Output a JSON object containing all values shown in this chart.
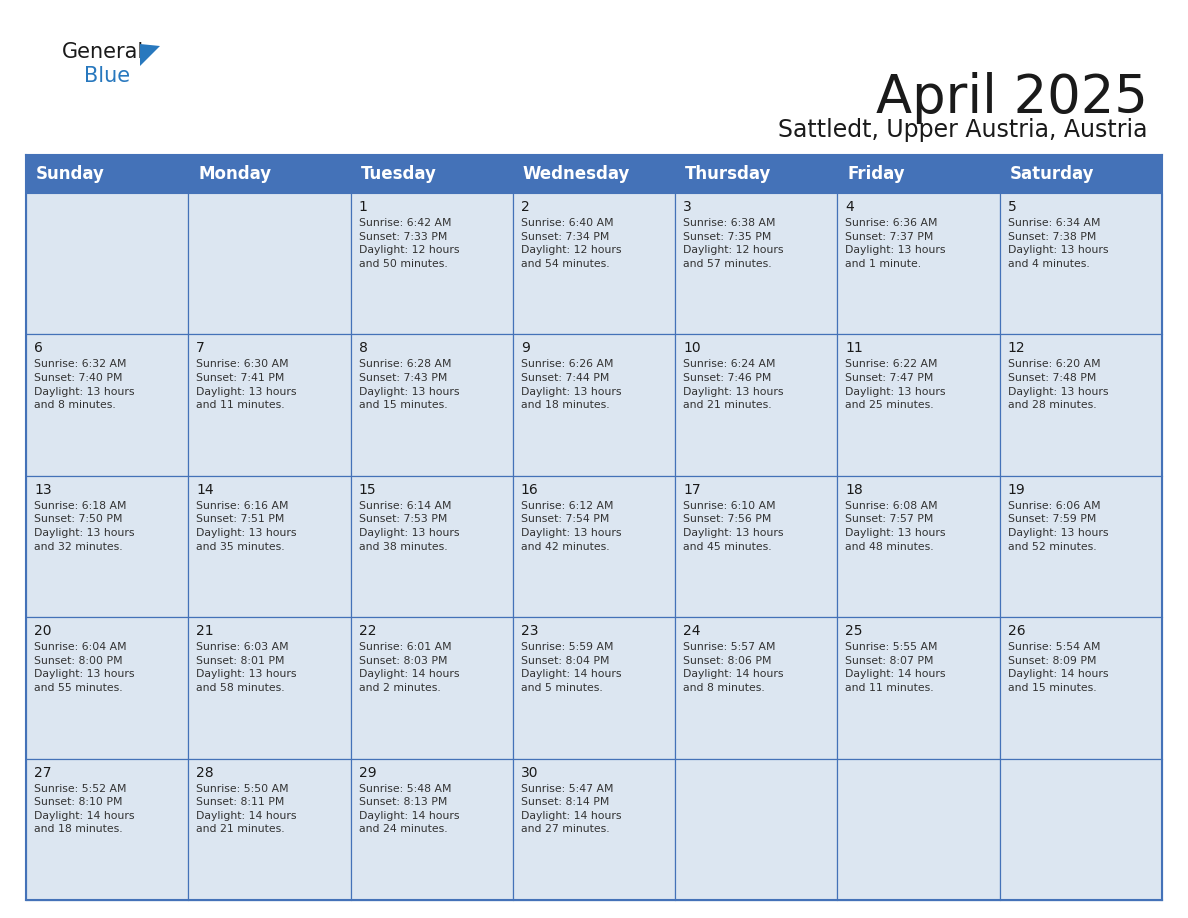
{
  "title": "April 2025",
  "subtitle": "Sattledt, Upper Austria, Austria",
  "header_color": "#4472b8",
  "header_text_color": "#ffffff",
  "cell_bg_color": "#dce6f1",
  "border_color": "#4472b8",
  "day_headers": [
    "Sunday",
    "Monday",
    "Tuesday",
    "Wednesday",
    "Thursday",
    "Friday",
    "Saturday"
  ],
  "weeks": [
    [
      {
        "day": "",
        "text": ""
      },
      {
        "day": "",
        "text": ""
      },
      {
        "day": "1",
        "text": "Sunrise: 6:42 AM\nSunset: 7:33 PM\nDaylight: 12 hours\nand 50 minutes."
      },
      {
        "day": "2",
        "text": "Sunrise: 6:40 AM\nSunset: 7:34 PM\nDaylight: 12 hours\nand 54 minutes."
      },
      {
        "day": "3",
        "text": "Sunrise: 6:38 AM\nSunset: 7:35 PM\nDaylight: 12 hours\nand 57 minutes."
      },
      {
        "day": "4",
        "text": "Sunrise: 6:36 AM\nSunset: 7:37 PM\nDaylight: 13 hours\nand 1 minute."
      },
      {
        "day": "5",
        "text": "Sunrise: 6:34 AM\nSunset: 7:38 PM\nDaylight: 13 hours\nand 4 minutes."
      }
    ],
    [
      {
        "day": "6",
        "text": "Sunrise: 6:32 AM\nSunset: 7:40 PM\nDaylight: 13 hours\nand 8 minutes."
      },
      {
        "day": "7",
        "text": "Sunrise: 6:30 AM\nSunset: 7:41 PM\nDaylight: 13 hours\nand 11 minutes."
      },
      {
        "day": "8",
        "text": "Sunrise: 6:28 AM\nSunset: 7:43 PM\nDaylight: 13 hours\nand 15 minutes."
      },
      {
        "day": "9",
        "text": "Sunrise: 6:26 AM\nSunset: 7:44 PM\nDaylight: 13 hours\nand 18 minutes."
      },
      {
        "day": "10",
        "text": "Sunrise: 6:24 AM\nSunset: 7:46 PM\nDaylight: 13 hours\nand 21 minutes."
      },
      {
        "day": "11",
        "text": "Sunrise: 6:22 AM\nSunset: 7:47 PM\nDaylight: 13 hours\nand 25 minutes."
      },
      {
        "day": "12",
        "text": "Sunrise: 6:20 AM\nSunset: 7:48 PM\nDaylight: 13 hours\nand 28 minutes."
      }
    ],
    [
      {
        "day": "13",
        "text": "Sunrise: 6:18 AM\nSunset: 7:50 PM\nDaylight: 13 hours\nand 32 minutes."
      },
      {
        "day": "14",
        "text": "Sunrise: 6:16 AM\nSunset: 7:51 PM\nDaylight: 13 hours\nand 35 minutes."
      },
      {
        "day": "15",
        "text": "Sunrise: 6:14 AM\nSunset: 7:53 PM\nDaylight: 13 hours\nand 38 minutes."
      },
      {
        "day": "16",
        "text": "Sunrise: 6:12 AM\nSunset: 7:54 PM\nDaylight: 13 hours\nand 42 minutes."
      },
      {
        "day": "17",
        "text": "Sunrise: 6:10 AM\nSunset: 7:56 PM\nDaylight: 13 hours\nand 45 minutes."
      },
      {
        "day": "18",
        "text": "Sunrise: 6:08 AM\nSunset: 7:57 PM\nDaylight: 13 hours\nand 48 minutes."
      },
      {
        "day": "19",
        "text": "Sunrise: 6:06 AM\nSunset: 7:59 PM\nDaylight: 13 hours\nand 52 minutes."
      }
    ],
    [
      {
        "day": "20",
        "text": "Sunrise: 6:04 AM\nSunset: 8:00 PM\nDaylight: 13 hours\nand 55 minutes."
      },
      {
        "day": "21",
        "text": "Sunrise: 6:03 AM\nSunset: 8:01 PM\nDaylight: 13 hours\nand 58 minutes."
      },
      {
        "day": "22",
        "text": "Sunrise: 6:01 AM\nSunset: 8:03 PM\nDaylight: 14 hours\nand 2 minutes."
      },
      {
        "day": "23",
        "text": "Sunrise: 5:59 AM\nSunset: 8:04 PM\nDaylight: 14 hours\nand 5 minutes."
      },
      {
        "day": "24",
        "text": "Sunrise: 5:57 AM\nSunset: 8:06 PM\nDaylight: 14 hours\nand 8 minutes."
      },
      {
        "day": "25",
        "text": "Sunrise: 5:55 AM\nSunset: 8:07 PM\nDaylight: 14 hours\nand 11 minutes."
      },
      {
        "day": "26",
        "text": "Sunrise: 5:54 AM\nSunset: 8:09 PM\nDaylight: 14 hours\nand 15 minutes."
      }
    ],
    [
      {
        "day": "27",
        "text": "Sunrise: 5:52 AM\nSunset: 8:10 PM\nDaylight: 14 hours\nand 18 minutes."
      },
      {
        "day": "28",
        "text": "Sunrise: 5:50 AM\nSunset: 8:11 PM\nDaylight: 14 hours\nand 21 minutes."
      },
      {
        "day": "29",
        "text": "Sunrise: 5:48 AM\nSunset: 8:13 PM\nDaylight: 14 hours\nand 24 minutes."
      },
      {
        "day": "30",
        "text": "Sunrise: 5:47 AM\nSunset: 8:14 PM\nDaylight: 14 hours\nand 27 minutes."
      },
      {
        "day": "",
        "text": ""
      },
      {
        "day": "",
        "text": ""
      },
      {
        "day": "",
        "text": ""
      }
    ]
  ],
  "logo_general_color": "#1a1a1a",
  "logo_blue_color": "#2878be",
  "title_fontsize": 38,
  "subtitle_fontsize": 17,
  "header_fontsize": 12,
  "day_num_fontsize": 10,
  "cell_text_fontsize": 7.8
}
